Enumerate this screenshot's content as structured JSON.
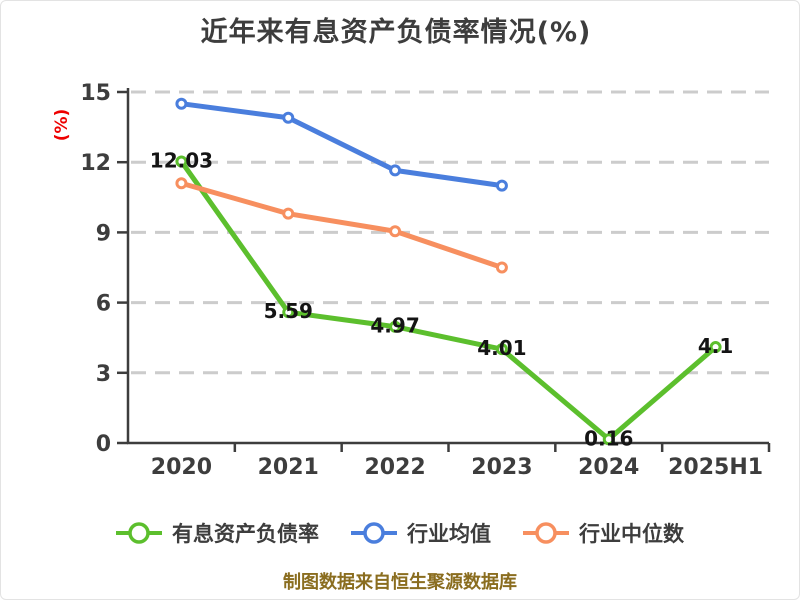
{
  "chart": {
    "title": "近年来有息资产负债率情况(%)",
    "y_axis_name": "(%)",
    "footer": "制图数据来自恒生聚源数据库",
    "title_color": "#3d3d3d",
    "y_axis_name_color": "#ee0000",
    "footer_color": "#8a6d1f",
    "axis_color": "#3d3d3d",
    "gridline_color": "#cccccc",
    "data_label_color": "#141414"
  },
  "chart_data": {
    "type": "line",
    "title": "近年来有息资产负债率情况(%)",
    "ylabel": "(%)",
    "categories": [
      "2020",
      "2021",
      "2022",
      "2023",
      "2024",
      "2025H1"
    ],
    "series": [
      {
        "name": "有息资产负债率",
        "color": "#5cbf2d",
        "values": [
          12.03,
          5.59,
          4.97,
          4.01,
          0.16,
          4.1
        ],
        "point_labels": [
          "12.03",
          "5.59",
          "4.97",
          "4.01",
          "0.16",
          "4.1"
        ]
      },
      {
        "name": "行业均值",
        "color": "#4a7edd",
        "values": [
          14.5,
          13.9,
          11.65,
          11.0,
          null,
          null
        ],
        "point_labels": null
      },
      {
        "name": "行业中位数",
        "color": "#f78f5f",
        "values": [
          11.1,
          9.8,
          9.05,
          7.5,
          null,
          null
        ],
        "point_labels": null
      }
    ],
    "ylim": [
      0,
      15
    ],
    "yticks": [
      0,
      3,
      6,
      9,
      12,
      15
    ],
    "grid": "dashed-horizontal",
    "legend_position": "bottom",
    "footer": "制图数据来自恒生聚源数据库"
  }
}
